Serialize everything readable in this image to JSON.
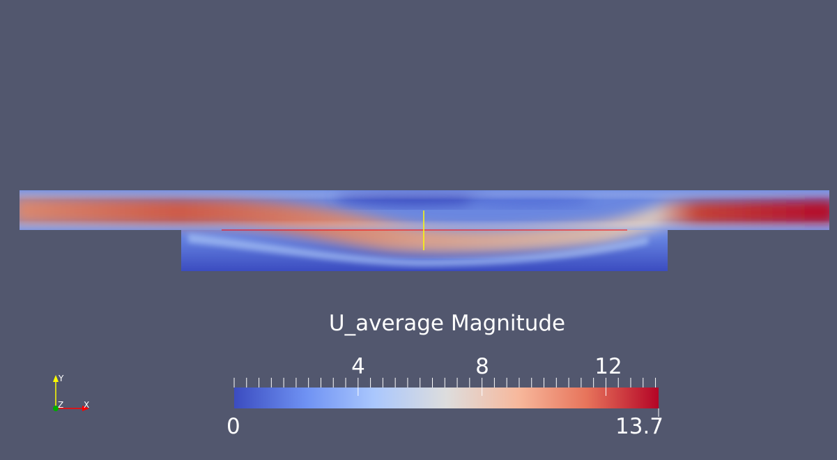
{
  "scalar_bar": {
    "title": "U_average Magnitude",
    "range_min": "0",
    "range_max": "13.7",
    "range": [
      0,
      13.7
    ],
    "ticks": [
      {
        "value": 4,
        "label": "4"
      },
      {
        "value": 8,
        "label": "8"
      },
      {
        "value": 12,
        "label": "12"
      }
    ],
    "colormap": [
      "#3b4cc0",
      "#6f92f3",
      "#aac7fd",
      "#dddddd",
      "#f7b89c",
      "#e7745b",
      "#b40426"
    ]
  },
  "orientation_axes": {
    "y_label": "Y",
    "z_label": "Z",
    "x_label": "X",
    "y_color": "#ffff00",
    "x_color": "#ff0000",
    "z_color": "#00aa00"
  },
  "probe_lines": {
    "horizontal_color": "#ff0000",
    "vertical_color": "#ffff00"
  },
  "background": "#52576e"
}
